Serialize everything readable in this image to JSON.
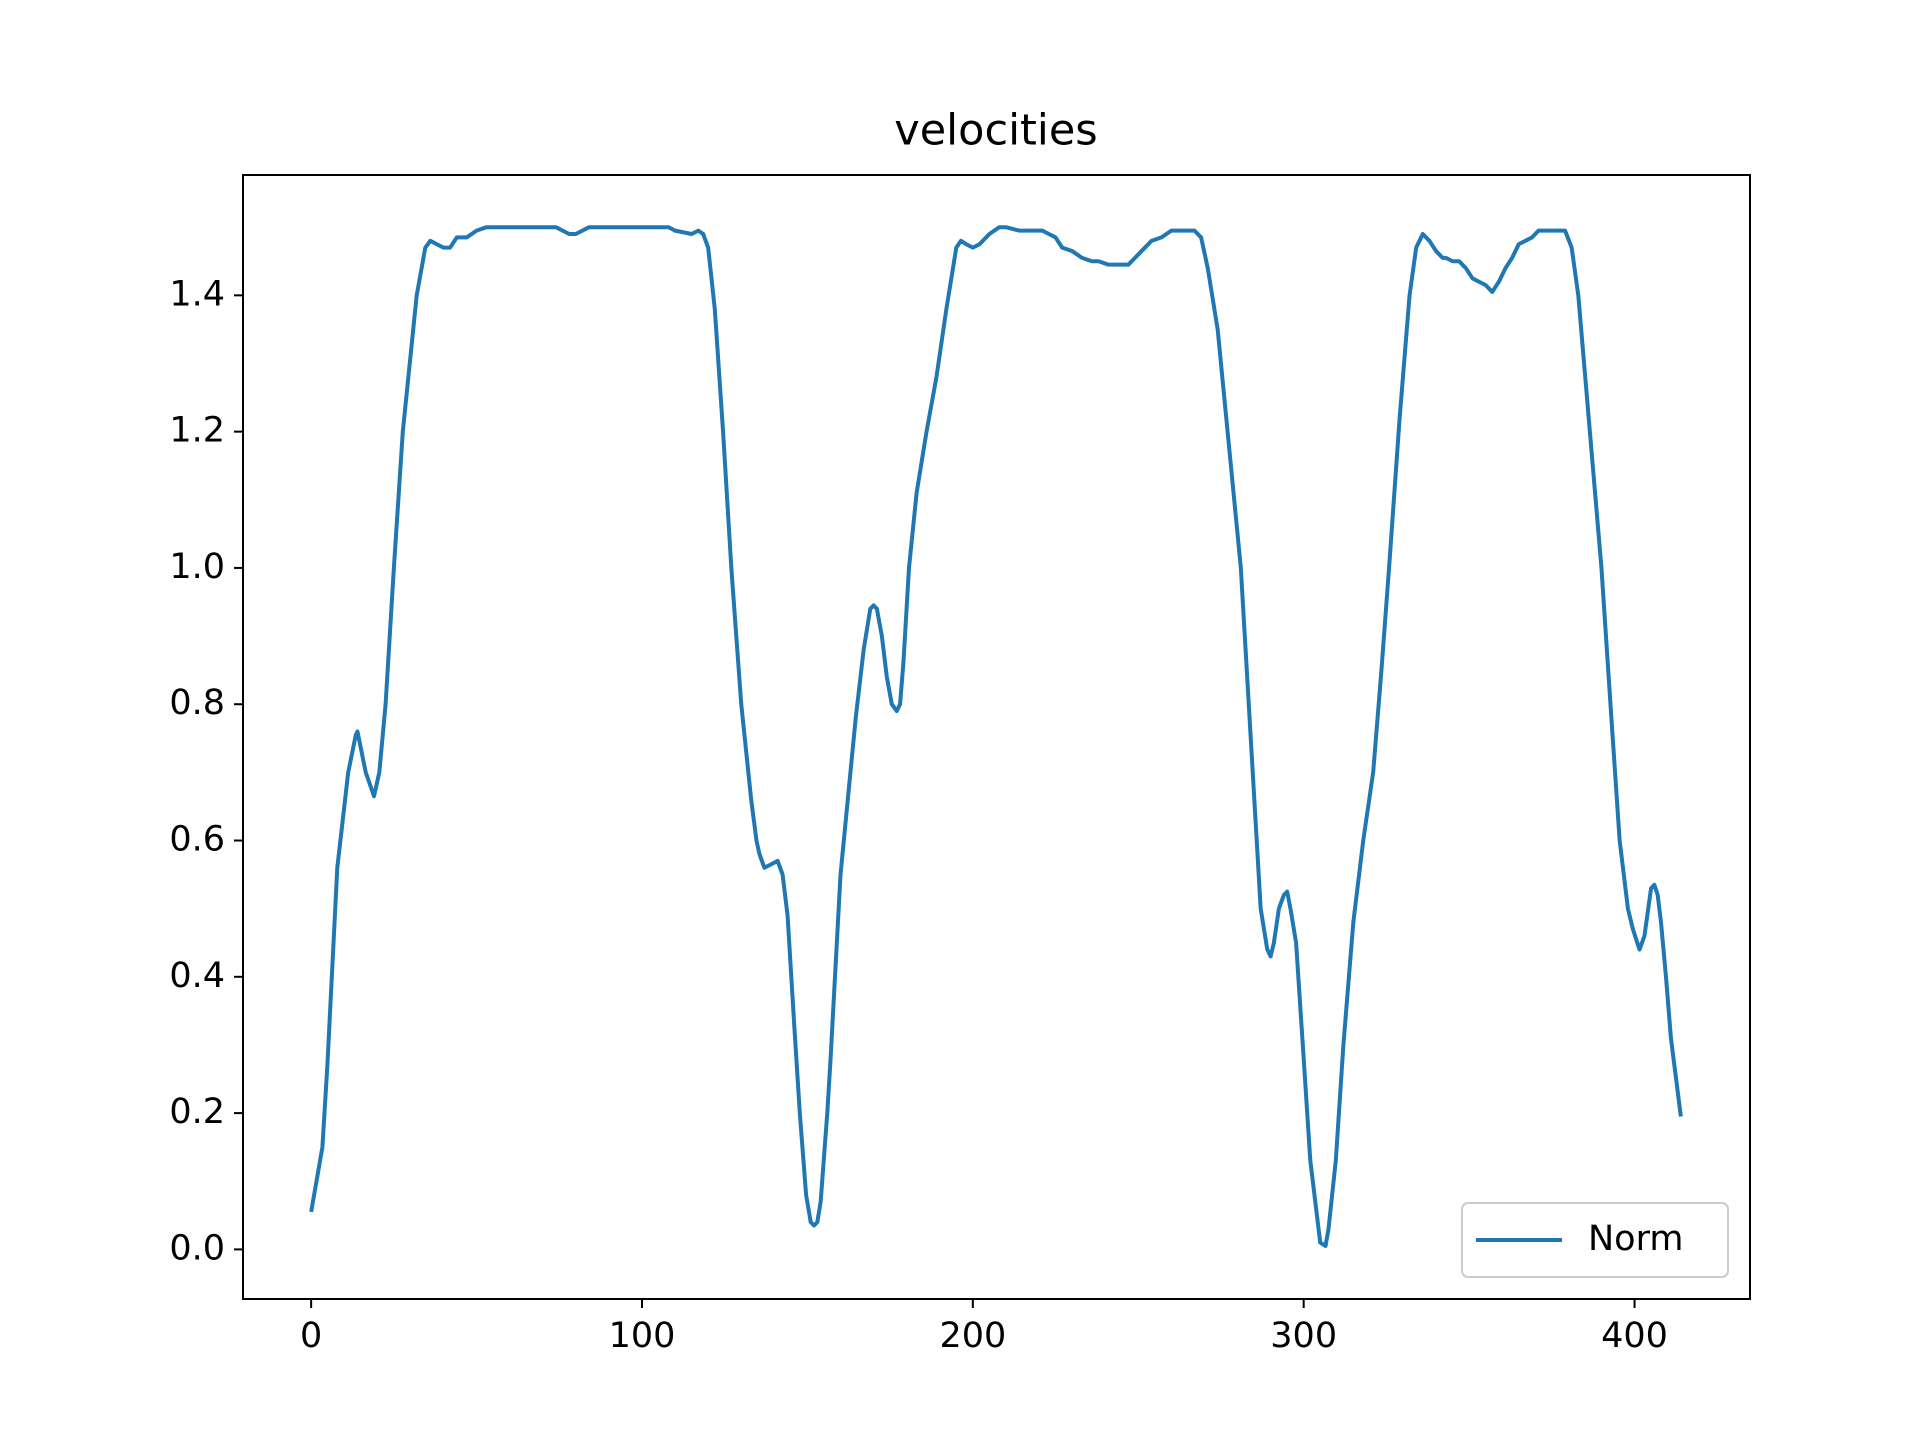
{
  "chart_data": {
    "type": "line",
    "title": "velocities",
    "x": [
      0,
      3.4,
      4.9,
      7.9,
      11.2,
      13.5,
      14,
      16.5,
      19,
      20.6,
      22.5,
      25,
      27.7,
      31.9,
      34.5,
      36,
      38,
      40,
      42,
      44,
      47,
      50,
      53,
      60,
      70,
      74,
      76,
      78,
      80,
      84,
      90,
      95,
      100,
      106,
      108,
      110,
      115,
      117,
      118.5,
      120,
      122,
      124.5,
      127,
      130,
      133,
      134.6,
      135.5,
      137,
      139,
      141,
      142.5,
      144,
      146,
      147.7,
      149.6,
      151,
      152,
      153,
      154,
      156,
      157,
      160,
      164.6,
      167,
      169,
      170,
      171,
      172.5,
      174,
      175.5,
      177,
      178,
      179,
      180.7,
      183,
      186,
      189,
      192,
      195,
      196.4,
      198,
      200,
      202,
      205,
      208,
      210,
      214,
      218,
      221,
      223,
      225,
      227,
      230,
      233,
      236,
      238,
      241,
      244,
      245,
      247,
      249,
      251,
      254,
      257,
      260,
      263,
      265,
      267,
      269,
      271,
      274,
      277,
      281,
      284,
      287,
      289,
      290,
      291,
      292.5,
      294,
      295,
      296,
      297.7,
      300,
      302,
      305,
      306.6,
      307.5,
      309.7,
      312,
      315,
      318,
      321,
      323.5,
      325.8,
      329,
      332,
      334,
      336,
      338,
      340,
      342,
      343,
      345,
      347,
      349,
      351,
      353,
      355,
      357,
      359,
      361,
      363,
      365,
      367,
      369,
      371,
      373,
      375,
      377,
      379,
      381,
      383,
      386.5,
      390,
      393,
      395.5,
      398,
      399.5,
      401.5,
      403,
      405,
      406,
      407,
      408,
      409.5,
      411,
      414
    ],
    "series": [
      {
        "name": "Norm",
        "color": "#1f77b4",
        "values": [
          0.055,
          0.15,
          0.27,
          0.56,
          0.7,
          0.755,
          0.76,
          0.7,
          0.665,
          0.7,
          0.8,
          1.0,
          1.2,
          1.4,
          1.47,
          1.48,
          1.475,
          1.47,
          1.47,
          1.485,
          1.485,
          1.495,
          1.5,
          1.5,
          1.5,
          1.5,
          1.495,
          1.49,
          1.49,
          1.5,
          1.5,
          1.5,
          1.5,
          1.5,
          1.5,
          1.495,
          1.49,
          1.495,
          1.49,
          1.47,
          1.38,
          1.2,
          1.0,
          0.8,
          0.66,
          0.6,
          0.58,
          0.56,
          0.565,
          0.57,
          0.55,
          0.49,
          0.33,
          0.2,
          0.08,
          0.04,
          0.035,
          0.04,
          0.07,
          0.2,
          0.28,
          0.55,
          0.78,
          0.88,
          0.94,
          0.945,
          0.94,
          0.9,
          0.84,
          0.8,
          0.79,
          0.8,
          0.86,
          1.0,
          1.11,
          1.2,
          1.28,
          1.38,
          1.47,
          1.48,
          1.475,
          1.47,
          1.475,
          1.49,
          1.5,
          1.5,
          1.495,
          1.495,
          1.495,
          1.49,
          1.485,
          1.47,
          1.465,
          1.455,
          1.45,
          1.45,
          1.445,
          1.445,
          1.445,
          1.445,
          1.455,
          1.465,
          1.48,
          1.485,
          1.495,
          1.495,
          1.495,
          1.495,
          1.485,
          1.44,
          1.35,
          1.2,
          1.0,
          0.75,
          0.5,
          0.44,
          0.43,
          0.45,
          0.5,
          0.52,
          0.525,
          0.5,
          0.45,
          0.28,
          0.13,
          0.01,
          0.005,
          0.03,
          0.13,
          0.3,
          0.48,
          0.6,
          0.7,
          0.85,
          1.0,
          1.22,
          1.4,
          1.47,
          1.49,
          1.48,
          1.465,
          1.455,
          1.455,
          1.45,
          1.45,
          1.44,
          1.425,
          1.42,
          1.415,
          1.405,
          1.42,
          1.44,
          1.455,
          1.475,
          1.48,
          1.485,
          1.495,
          1.495,
          1.495,
          1.495,
          1.495,
          1.47,
          1.4,
          1.2,
          1.0,
          0.78,
          0.6,
          0.5,
          0.47,
          0.44,
          0.46,
          0.53,
          0.535,
          0.52,
          0.48,
          0.4,
          0.31,
          0.195
        ]
      }
    ],
    "xlim": [
      -20.6,
      434.9
    ],
    "ylim": [
      -0.0728,
      1.5766
    ],
    "xticks": [
      0,
      100,
      200,
      300,
      400
    ],
    "yticks": [
      {
        "value": 0,
        "label": "0.0"
      },
      0.2,
      0.4,
      0.6,
      0.8,
      {
        "value": 1,
        "label": "1.0"
      },
      1.2,
      1.4
    ],
    "legend": "lower right"
  }
}
